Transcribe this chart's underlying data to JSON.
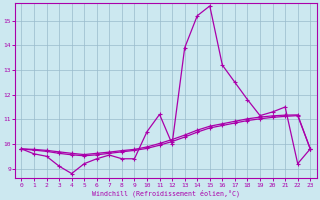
{
  "xlabel": "Windchill (Refroidissement éolien,°C)",
  "bg_color": "#cce8f0",
  "line_color": "#aa00aa",
  "grid_color": "#99bbcc",
  "spine_color": "#aa00aa",
  "xlim": [
    -0.5,
    23.5
  ],
  "ylim": [
    8.6,
    15.7
  ],
  "xticks": [
    0,
    1,
    2,
    3,
    4,
    5,
    6,
    7,
    8,
    9,
    10,
    11,
    12,
    13,
    14,
    15,
    16,
    17,
    18,
    19,
    20,
    21,
    22,
    23
  ],
  "yticks": [
    9,
    10,
    11,
    12,
    13,
    14,
    15
  ],
  "hours": [
    0,
    1,
    2,
    3,
    4,
    5,
    6,
    7,
    8,
    9,
    10,
    11,
    12,
    13,
    14,
    15,
    16,
    17,
    18,
    19,
    20,
    21,
    22,
    23
  ],
  "line1": [
    9.8,
    9.6,
    9.5,
    9.1,
    8.8,
    9.2,
    9.4,
    9.55,
    9.4,
    9.4,
    10.5,
    11.2,
    10.0,
    13.9,
    15.2,
    15.6,
    13.2,
    12.5,
    11.8,
    11.15,
    11.3,
    11.5,
    9.2,
    9.8
  ],
  "line2": [
    9.8,
    9.75,
    9.7,
    9.62,
    9.56,
    9.52,
    9.56,
    9.62,
    9.68,
    9.74,
    9.82,
    9.95,
    10.1,
    10.28,
    10.48,
    10.65,
    10.75,
    10.85,
    10.95,
    11.02,
    11.08,
    11.12,
    11.15,
    9.8
  ],
  "line3": [
    9.8,
    9.78,
    9.74,
    9.68,
    9.62,
    9.57,
    9.62,
    9.67,
    9.73,
    9.78,
    9.88,
    10.02,
    10.18,
    10.36,
    10.56,
    10.72,
    10.82,
    10.92,
    11.02,
    11.09,
    11.14,
    11.17,
    11.18,
    9.8
  ]
}
